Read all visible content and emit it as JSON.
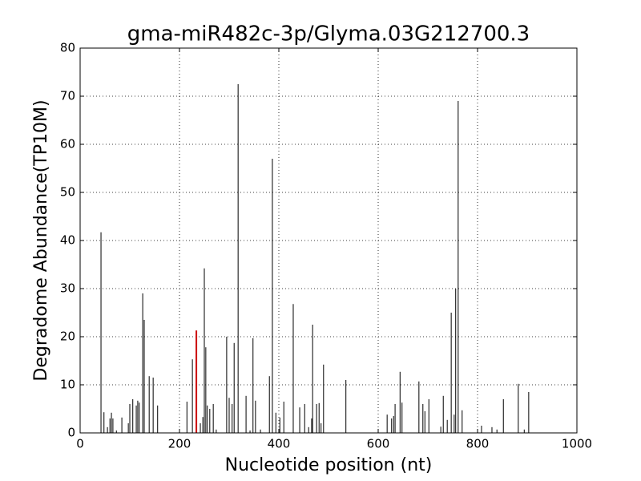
{
  "chart_data": {
    "type": "spike",
    "title": "gma-miR482c-3p/Glyma.03G212700.3",
    "x_label": "Nucleotide position (nt)",
    "y_label": "Degradome Abundance(TP10M)",
    "xlim": [
      0,
      1000
    ],
    "ylim": [
      0,
      80
    ],
    "xticks": [
      0,
      200,
      400,
      600,
      800,
      1000
    ],
    "yticks": [
      0,
      10,
      20,
      30,
      40,
      50,
      60,
      70,
      80
    ],
    "grid": true,
    "series": [
      {
        "color": "#000000",
        "x": [
          42,
          48,
          55,
          60,
          63,
          66,
          73,
          84,
          97,
          100,
          106,
          113,
          116,
          119,
          126,
          129,
          139,
          147,
          156,
          215,
          226,
          242,
          247,
          250,
          253,
          256,
          261,
          268,
          274,
          295,
          300,
          306,
          310,
          318,
          334,
          342,
          348,
          353,
          363,
          381,
          387,
          394,
          402,
          410,
          429,
          442,
          452,
          460,
          466,
          468,
          476,
          481,
          485,
          490,
          535,
          618,
          627,
          631,
          634,
          644,
          648,
          682,
          690,
          694,
          702,
          726,
          731,
          739,
          747,
          753,
          756,
          761,
          769,
          808,
          829,
          839,
          852,
          882,
          894,
          903
        ],
        "values": [
          41.7,
          4.3,
          1.2,
          3,
          4.2,
          3,
          0.5,
          3.2,
          2,
          6,
          7,
          5.7,
          6.7,
          6.3,
          29,
          23.5,
          11.8,
          11.5,
          5.7,
          6.5,
          15.3,
          2,
          3.3,
          34.2,
          17.8,
          5.7,
          5,
          6,
          0.7,
          20,
          7.3,
          6,
          18.7,
          72.5,
          7.7,
          0.5,
          19.7,
          6.7,
          0.7,
          11.8,
          57,
          4.2,
          3.2,
          6.5,
          26.8,
          5.3,
          6,
          1.2,
          3,
          22.5,
          6,
          6.2,
          2,
          14.2,
          11,
          3.8,
          3,
          3.5,
          6,
          12.7,
          6.3,
          10.7,
          6,
          4.5,
          7,
          1.3,
          7.7,
          2.7,
          25,
          3.8,
          30,
          69,
          4.7,
          1.5,
          1.2,
          0.7,
          7,
          10.2,
          0.7,
          8.5
        ]
      },
      {
        "color": "#cc0000",
        "x": [
          234
        ],
        "values": [
          21.3
        ]
      }
    ]
  }
}
